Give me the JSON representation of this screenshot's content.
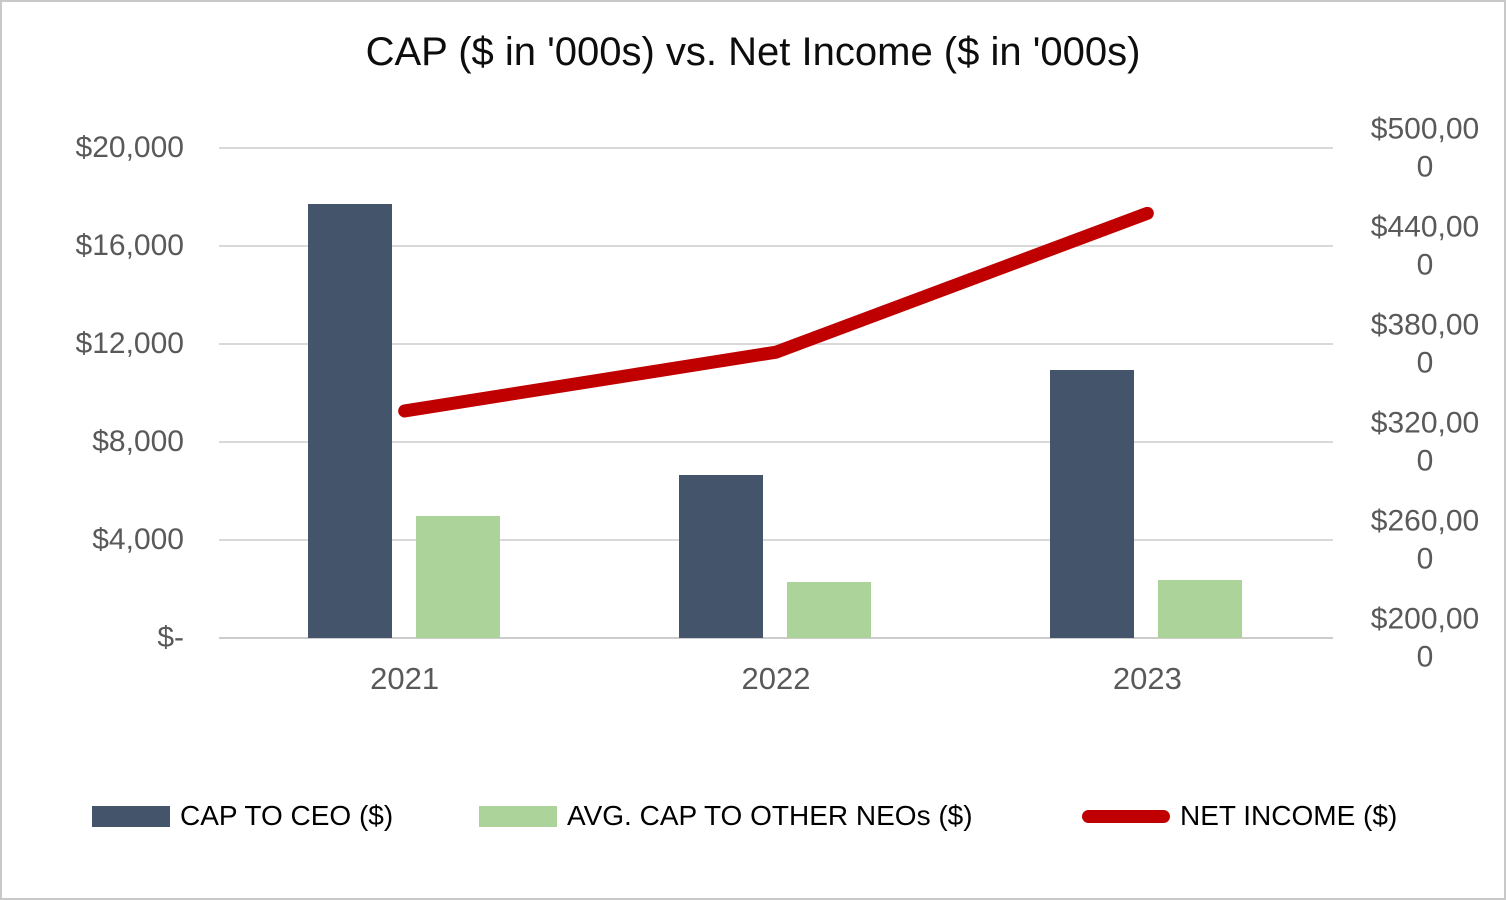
{
  "chart_data": {
    "type": "bar",
    "subtype": "combo-bar-line",
    "title": "CAP ($ in '000s) vs. Net Income ($ in '000s)",
    "categories": [
      "2021",
      "2022",
      "2023"
    ],
    "series": [
      {
        "name": "CAP TO CEO ($)",
        "kind": "bar",
        "axis": "left",
        "color": "#44546A",
        "values": [
          17700,
          6650,
          10950
        ]
      },
      {
        "name": "AVG. CAP TO OTHER NEOs ($)",
        "kind": "bar",
        "axis": "left",
        "color": "#ACD39A",
        "values": [
          5000,
          2300,
          2350
        ]
      },
      {
        "name": "NET INCOME ($)",
        "kind": "line",
        "axis": "right",
        "color": "#C00000",
        "values": [
          339000,
          375000,
          460000
        ]
      }
    ],
    "left_axis": {
      "tick_labels": [
        "$20,000",
        "$16,000",
        "$12,000",
        "$8,000",
        "$4,000",
        "$-"
      ],
      "tick_values": [
        20000,
        16000,
        12000,
        8000,
        4000,
        0
      ],
      "range": [
        0,
        20000
      ]
    },
    "right_axis": {
      "tick_labels": [
        "$500,000",
        "$440,000",
        "$380,000",
        "$320,000",
        "$260,000",
        "$200,000"
      ],
      "tick_values": [
        500000,
        440000,
        380000,
        320000,
        260000,
        200000
      ],
      "range": [
        200000,
        500000
      ]
    },
    "legend_position": "bottom",
    "grid": true,
    "colors": {
      "grid": "#D9D9D9",
      "axis_text": "#595959",
      "title_text": "#0D0D0D",
      "background": "#FFFFFF",
      "border": "#C8C8C8"
    }
  }
}
